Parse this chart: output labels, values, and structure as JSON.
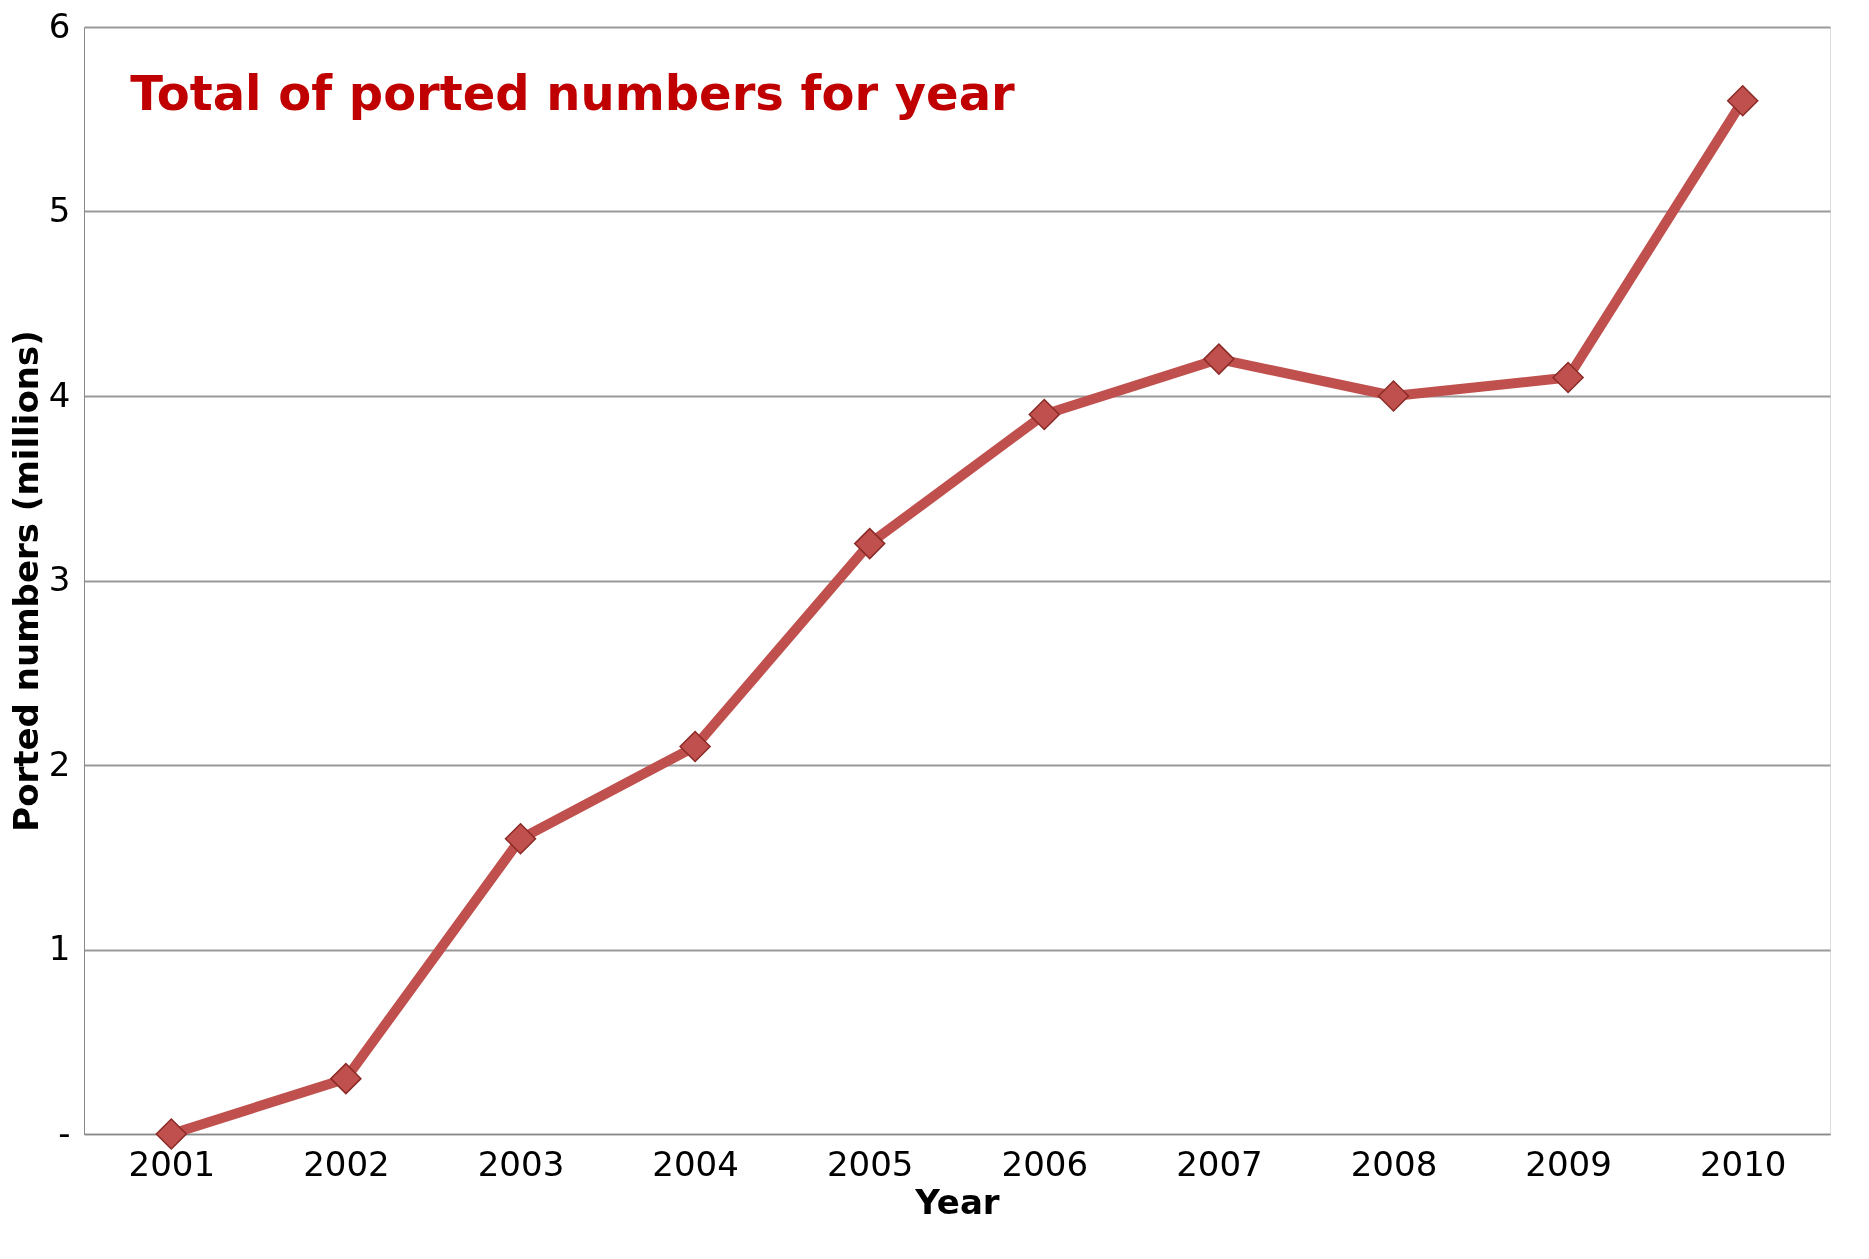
{
  "chart_data": {
    "type": "line",
    "title": "Total of ported numbers for year",
    "xlabel": "Year",
    "ylabel": "Ported numbers (millions)",
    "categories": [
      "2001",
      "2002",
      "2003",
      "2004",
      "2005",
      "2006",
      "2007",
      "2008",
      "2009",
      "2010"
    ],
    "series": [
      {
        "color": "#c0504d",
        "values": [
          0,
          0.3,
          1.6,
          2.1,
          3.2,
          3.9,
          4.2,
          4.0,
          4.1,
          5.6
        ]
      }
    ],
    "ylim": [
      0,
      6
    ],
    "yticks": [
      {
        "value": 0,
        "label": "-"
      },
      1,
      2,
      3,
      4,
      5,
      6
    ],
    "grid": "y",
    "marker": "diamond",
    "line_style": "solid"
  }
}
